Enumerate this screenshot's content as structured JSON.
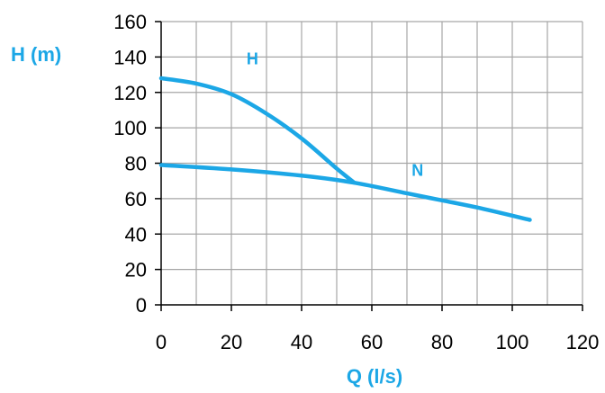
{
  "chart_data": {
    "type": "line",
    "title": "",
    "xlabel": "Q (l/s)",
    "ylabel": "H (m)",
    "xlim": [
      0,
      120
    ],
    "ylim": [
      0,
      160
    ],
    "xticks": [
      0,
      20,
      40,
      60,
      80,
      100,
      120
    ],
    "yticks": [
      0,
      20,
      40,
      60,
      80,
      100,
      120,
      140,
      160
    ],
    "xtick_labels": [
      "0",
      "20",
      "40",
      "60",
      "80",
      "100",
      "120"
    ],
    "ytick_labels": [
      "0",
      "20",
      "40",
      "60",
      "80",
      "100",
      "120",
      "140",
      "160"
    ],
    "grid": true,
    "legend": "none",
    "series": [
      {
        "name": "H",
        "x": [
          0,
          10,
          20,
          30,
          40,
          50,
          55
        ],
        "y": [
          128,
          125,
          119,
          108,
          94,
          77,
          69
        ]
      },
      {
        "name": "N",
        "x": [
          0,
          20,
          40,
          55,
          70,
          80,
          90,
          105
        ],
        "y": [
          79,
          76.5,
          73,
          69,
          63,
          59,
          55,
          48
        ]
      }
    ],
    "label_positions": [
      {
        "series": "H",
        "x": 26,
        "y": 136
      },
      {
        "series": "N",
        "x": 73,
        "y": 73
      }
    ],
    "colors": {
      "line": "#1ca7e6",
      "label": "#1ca7e6",
      "grid": "#a6a6a6",
      "axis": "#000000"
    }
  }
}
